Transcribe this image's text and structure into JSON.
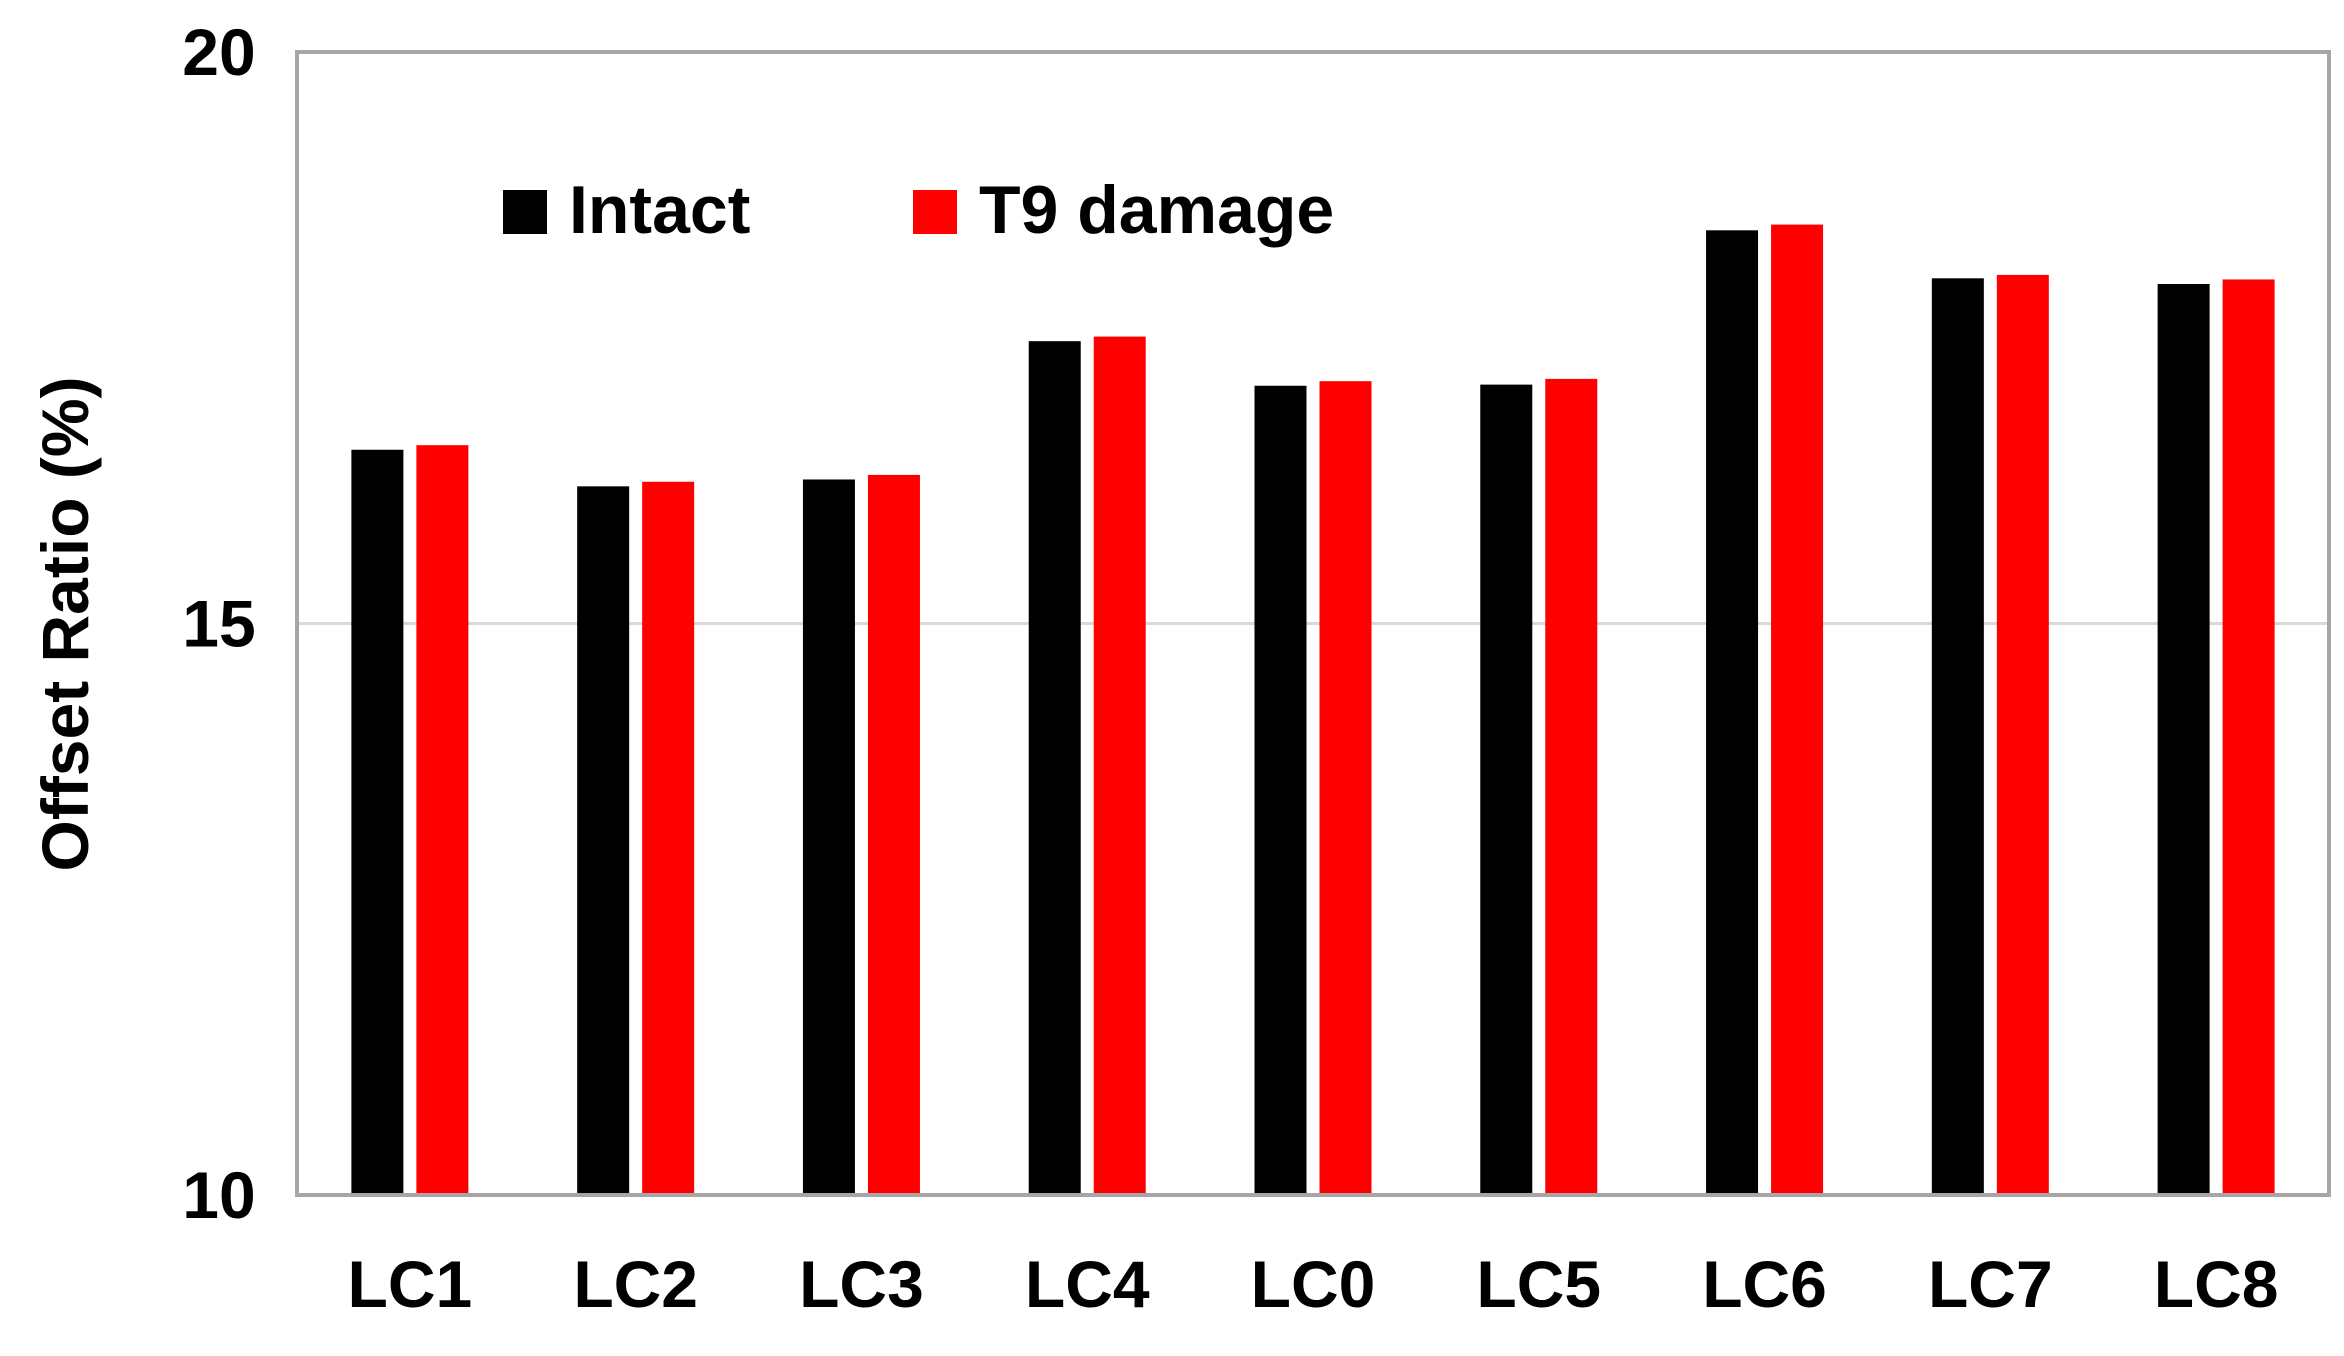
{
  "chart_data": {
    "type": "bar",
    "title": "",
    "xlabel": "",
    "ylabel": "Offset Ratio (%)",
    "ylim": [
      10,
      20
    ],
    "yticks": [
      "10",
      "15",
      "20"
    ],
    "grid": "horizontal",
    "legend_position": "top-left",
    "categories": [
      "LC1",
      "LC2",
      "LC3",
      "LC4",
      "LC0",
      "LC5",
      "LC6",
      "LC7",
      "LC8"
    ],
    "series": [
      {
        "name": "Intact",
        "color": "#000000",
        "values": [
          16.52,
          16.2,
          16.26,
          17.47,
          17.08,
          17.09,
          18.44,
          18.02,
          17.97
        ]
      },
      {
        "name": "T9 damage",
        "color": "#ff0000",
        "values": [
          16.56,
          16.24,
          16.3,
          17.51,
          17.12,
          17.14,
          18.49,
          18.05,
          18.01
        ]
      }
    ]
  }
}
